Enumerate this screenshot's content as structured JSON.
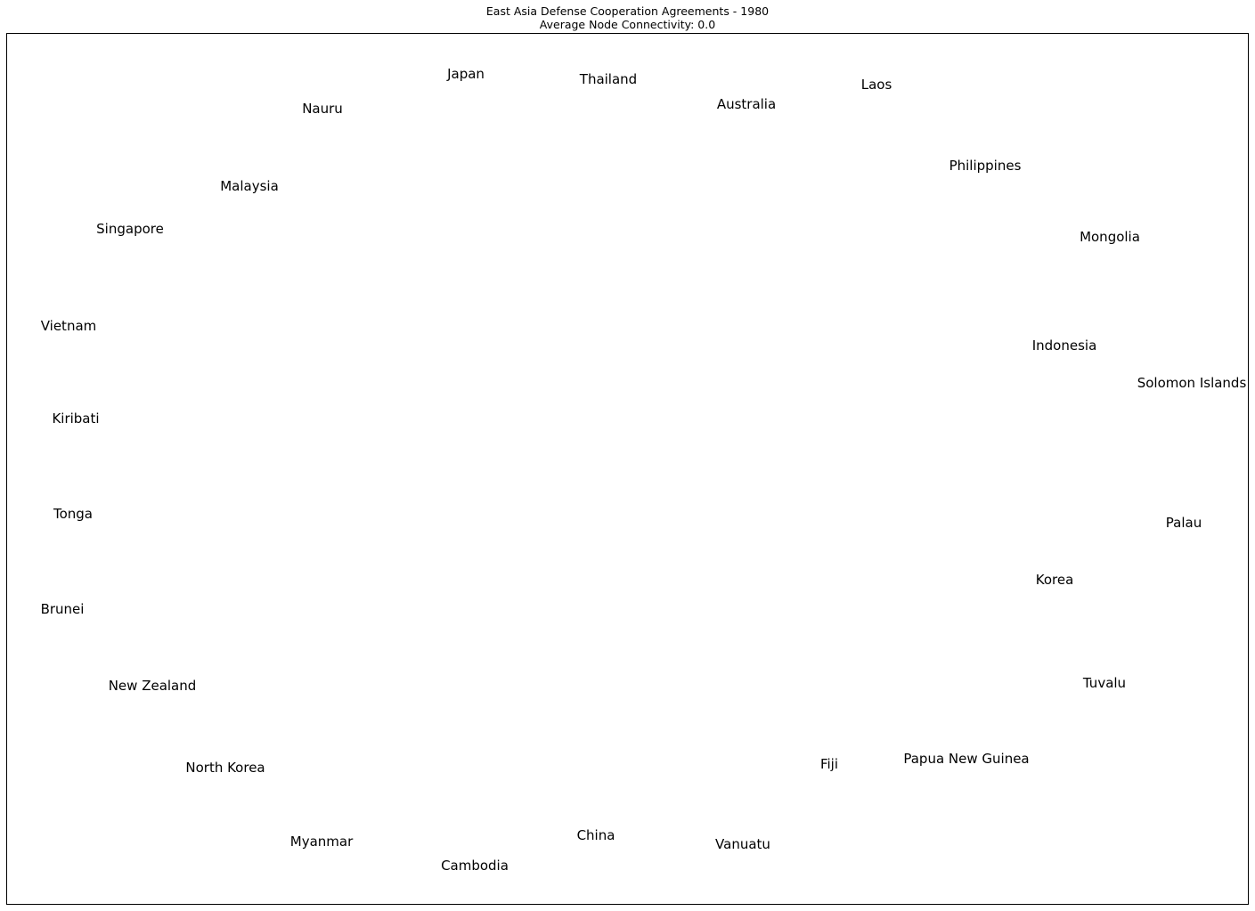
{
  "figure": {
    "title_line1": "East Asia Defense Cooperation Agreements - 1980",
    "title_line2": "Average Node Connectivity: 0.0"
  },
  "graph": {
    "layout": "circular",
    "edges": [],
    "nodes": [
      "Japan",
      "Nauru",
      "Malaysia",
      "Singapore",
      "Vietnam",
      "Kiribati",
      "Tonga",
      "Brunei",
      "New Zealand",
      "North Korea",
      "Myanmar",
      "Cambodia",
      "China",
      "Vanuatu",
      "Fiji",
      "Papua New Guinea",
      "Tuvalu",
      "Korea",
      "Palau",
      "Solomon Islands",
      "Indonesia",
      "Mongolia",
      "Philippines",
      "Laos",
      "Australia",
      "Thailand"
    ]
  }
}
